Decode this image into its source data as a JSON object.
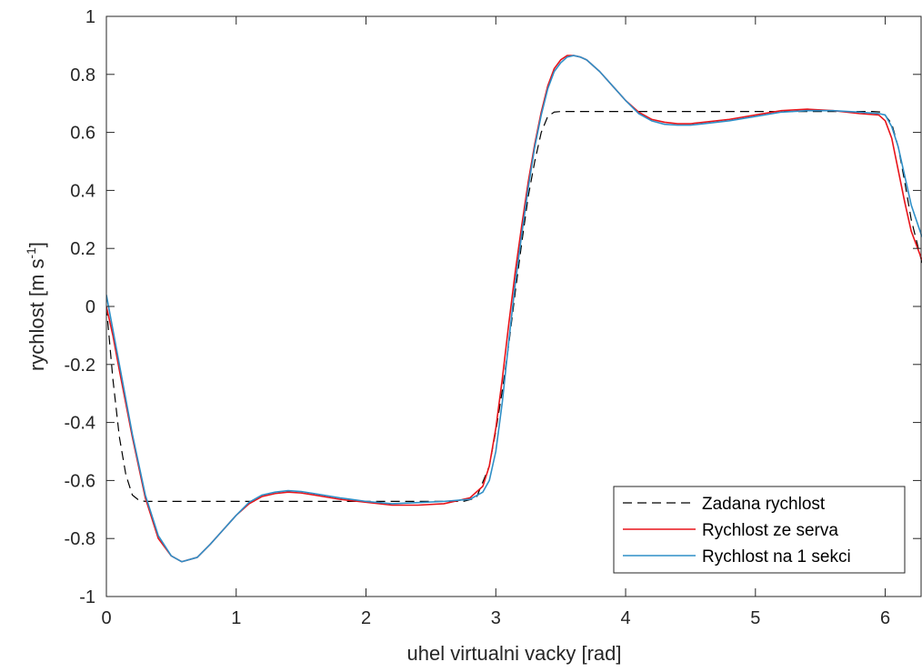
{
  "chart_data": {
    "type": "line",
    "title": "",
    "xlabel": "uhel virtualni vacky [rad]",
    "ylabel": "rychlost [m s",
    "ylabel_superscript": "-1",
    "ylabel_suffix": "]",
    "xlim": [
      0,
      6.2832
    ],
    "ylim": [
      -1,
      1
    ],
    "xticks": [
      0,
      1,
      2,
      3,
      4,
      5,
      6
    ],
    "xtick_labels": [
      "0",
      "1",
      "2",
      "3",
      "4",
      "5",
      "6"
    ],
    "yticks": [
      -1,
      -0.8,
      -0.6,
      -0.4,
      -0.2,
      0,
      0.2,
      0.4,
      0.6,
      0.8,
      1
    ],
    "ytick_labels": [
      "-1",
      "-0.8",
      "-0.6",
      "-0.4",
      "-0.2",
      "0",
      "0.2",
      "0.4",
      "0.6",
      "0.8",
      "1"
    ],
    "grid": false,
    "box": true,
    "legend_position": "bottom-right",
    "series": [
      {
        "name": "Zadana rychlost",
        "color": "#000000",
        "style": "dashed",
        "x": [
          0,
          0.05,
          0.1,
          0.15,
          0.2,
          0.25,
          0.3,
          0.5,
          1.0,
          1.5,
          2.0,
          2.5,
          2.75,
          2.85,
          2.95,
          3.0,
          3.05,
          3.1,
          3.15,
          3.2,
          3.25,
          3.3,
          3.35,
          3.4,
          3.45,
          3.5,
          4.0,
          5.0,
          5.9,
          5.98,
          6.05,
          6.1,
          6.15,
          6.2,
          6.2832
        ],
        "y": [
          0,
          -0.25,
          -0.45,
          -0.58,
          -0.65,
          -0.668,
          -0.672,
          -0.672,
          -0.672,
          -0.672,
          -0.672,
          -0.672,
          -0.672,
          -0.66,
          -0.55,
          -0.43,
          -0.29,
          -0.13,
          0.05,
          0.22,
          0.38,
          0.5,
          0.6,
          0.655,
          0.67,
          0.672,
          0.672,
          0.672,
          0.672,
          0.67,
          0.63,
          0.55,
          0.43,
          0.3,
          0.15
        ]
      },
      {
        "name": "Rychlost ze serva",
        "color": "#e8141a",
        "style": "solid",
        "x": [
          0,
          0.05,
          0.1,
          0.2,
          0.3,
          0.4,
          0.5,
          0.58,
          0.7,
          0.8,
          0.9,
          1.0,
          1.1,
          1.2,
          1.3,
          1.4,
          1.5,
          1.6,
          1.8,
          2.0,
          2.2,
          2.4,
          2.6,
          2.8,
          2.9,
          2.95,
          3.0,
          3.05,
          3.1,
          3.15,
          3.2,
          3.25,
          3.3,
          3.35,
          3.4,
          3.45,
          3.5,
          3.55,
          3.6,
          3.65,
          3.7,
          3.75,
          3.8,
          3.9,
          4.0,
          4.1,
          4.2,
          4.3,
          4.4,
          4.5,
          4.6,
          4.8,
          5.0,
          5.2,
          5.4,
          5.6,
          5.8,
          5.95,
          6.0,
          6.05,
          6.1,
          6.15,
          6.2,
          6.2832
        ],
        "y": [
          0.0,
          -0.1,
          -0.22,
          -0.45,
          -0.66,
          -0.8,
          -0.86,
          -0.88,
          -0.865,
          -0.82,
          -0.77,
          -0.72,
          -0.68,
          -0.655,
          -0.645,
          -0.64,
          -0.643,
          -0.65,
          -0.665,
          -0.675,
          -0.685,
          -0.685,
          -0.68,
          -0.66,
          -0.62,
          -0.55,
          -0.42,
          -0.25,
          -0.06,
          0.12,
          0.28,
          0.43,
          0.56,
          0.67,
          0.76,
          0.82,
          0.85,
          0.865,
          0.865,
          0.86,
          0.85,
          0.83,
          0.81,
          0.76,
          0.71,
          0.67,
          0.645,
          0.635,
          0.63,
          0.63,
          0.635,
          0.645,
          0.66,
          0.675,
          0.68,
          0.675,
          0.665,
          0.66,
          0.64,
          0.58,
          0.47,
          0.36,
          0.26,
          0.16
        ]
      },
      {
        "name": "Rychlost na 1 sekci",
        "color": "#2f8fc7",
        "style": "solid",
        "x": [
          0,
          0.05,
          0.1,
          0.2,
          0.3,
          0.4,
          0.5,
          0.58,
          0.7,
          0.8,
          0.9,
          1.0,
          1.1,
          1.2,
          1.3,
          1.4,
          1.5,
          1.6,
          1.8,
          2.0,
          2.2,
          2.4,
          2.6,
          2.8,
          2.9,
          2.95,
          3.0,
          3.05,
          3.1,
          3.15,
          3.2,
          3.25,
          3.3,
          3.35,
          3.4,
          3.45,
          3.5,
          3.55,
          3.6,
          3.65,
          3.7,
          3.75,
          3.8,
          3.9,
          4.0,
          4.1,
          4.2,
          4.3,
          4.4,
          4.5,
          4.6,
          4.8,
          5.0,
          5.2,
          5.4,
          5.6,
          5.8,
          5.95,
          6.0,
          6.05,
          6.1,
          6.15,
          6.2,
          6.2832
        ],
        "y": [
          0.04,
          -0.08,
          -0.2,
          -0.44,
          -0.65,
          -0.79,
          -0.86,
          -0.88,
          -0.865,
          -0.82,
          -0.77,
          -0.72,
          -0.675,
          -0.65,
          -0.64,
          -0.635,
          -0.638,
          -0.645,
          -0.66,
          -0.672,
          -0.68,
          -0.676,
          -0.672,
          -0.665,
          -0.64,
          -0.6,
          -0.5,
          -0.33,
          -0.12,
          0.08,
          0.25,
          0.41,
          0.55,
          0.66,
          0.75,
          0.81,
          0.84,
          0.86,
          0.865,
          0.86,
          0.85,
          0.83,
          0.81,
          0.76,
          0.71,
          0.665,
          0.64,
          0.628,
          0.625,
          0.625,
          0.63,
          0.64,
          0.655,
          0.67,
          0.675,
          0.675,
          0.67,
          0.665,
          0.66,
          0.62,
          0.55,
          0.45,
          0.35,
          0.24
        ]
      }
    ]
  }
}
